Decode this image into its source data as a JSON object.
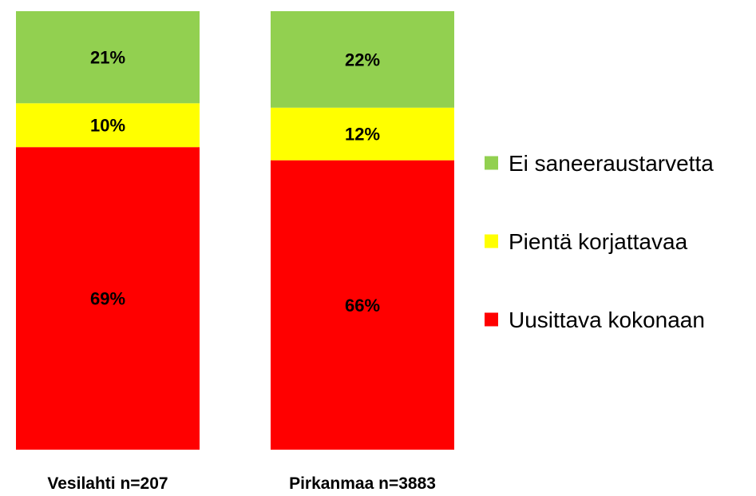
{
  "chart_data": {
    "type": "bar",
    "stacked": true,
    "percent": true,
    "categories": [
      "Vesilahti n=207",
      "Pirkanmaa n=3883"
    ],
    "series": [
      {
        "name": "Uusittava kokonaan",
        "values": [
          69,
          66
        ],
        "labels": [
          "69%",
          "66%"
        ],
        "color": "#ff0000"
      },
      {
        "name": "Pientä korjattavaa",
        "values": [
          10,
          12
        ],
        "labels": [
          "10%",
          "12%"
        ],
        "color": "#ffff00"
      },
      {
        "name": "Ei saneeraustarvetta",
        "values": [
          21,
          22
        ],
        "labels": [
          "21%",
          "22%"
        ],
        "color": "#92d050"
      }
    ],
    "legend_order": [
      "Ei saneeraustarvetta",
      "Pientä korjattavaa",
      "Uusittava kokonaan"
    ],
    "legend_position": "right",
    "ylim": [
      0,
      100
    ],
    "grid": false,
    "title": "",
    "xlabel": "",
    "ylabel": ""
  }
}
